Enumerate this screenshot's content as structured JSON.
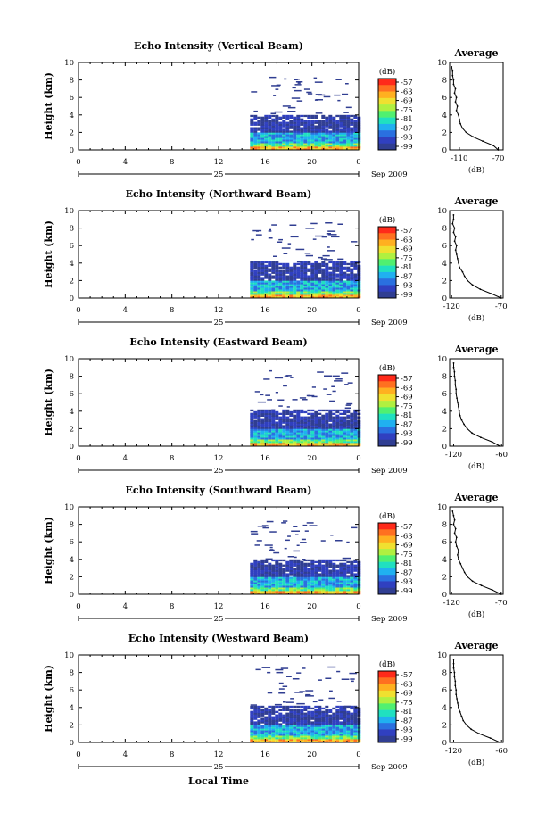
{
  "figure": {
    "bottom_label": "Local Time",
    "date_label": "Sep 2009",
    "day_label": "25",
    "colorbar": {
      "unit": "(dB)",
      "tick_labels": [
        "-57",
        "-63",
        "-69",
        "-75",
        "-81",
        "-87",
        "-93",
        "-99"
      ],
      "colors": [
        "#ff2a1a",
        "#ff7020",
        "#ffb020",
        "#f0e030",
        "#b0f040",
        "#50f070",
        "#20e0c0",
        "#20b0f0",
        "#2a70e0",
        "#3040c0",
        "#303e92"
      ]
    },
    "profile_title": "Average",
    "profile_xlabel": "(dB)"
  },
  "chart_data": [
    {
      "type": "heatmap",
      "title": "Echo Intensity (Vertical Beam)",
      "ylabel": "Height (km)",
      "x_ticks": [
        "0",
        "4",
        "8",
        "12",
        "16",
        "20",
        "0"
      ],
      "y_ticks": [
        "0",
        "2",
        "4",
        "6",
        "8",
        "10"
      ],
      "xlim": [
        0,
        24
      ],
      "ylim": [
        0,
        10
      ],
      "data_start_hour": 14.7,
      "echo_top_km": 4.0,
      "profile": {
        "x_ticks": [
          "-110",
          "-70"
        ],
        "xlim": [
          -120,
          -65
        ],
        "height_km": [
          0,
          0.5,
          1,
          1.5,
          2,
          2.5,
          3,
          3.5,
          4,
          4.5,
          5,
          5.5,
          6,
          6.5,
          7,
          7.5,
          8,
          8.5,
          9,
          9.5
        ],
        "value_db": [
          -70,
          -75,
          -86,
          -96,
          -103,
          -107,
          -109,
          -110,
          -111,
          -113,
          -112,
          -114,
          -113,
          -115,
          -114,
          -116,
          -116,
          -117,
          -117,
          -118
        ]
      }
    },
    {
      "type": "heatmap",
      "title": "Echo Intensity (Northward Beam)",
      "ylabel": "Height (km)",
      "x_ticks": [
        "0",
        "4",
        "8",
        "12",
        "16",
        "20",
        "0"
      ],
      "y_ticks": [
        "0",
        "2",
        "4",
        "6",
        "8",
        "10"
      ],
      "xlim": [
        0,
        24
      ],
      "ylim": [
        0,
        10
      ],
      "data_start_hour": 14.7,
      "echo_top_km": 4.2,
      "profile": {
        "x_ticks": [
          "-120",
          "-70"
        ],
        "xlim": [
          -122,
          -68
        ],
        "height_km": [
          0,
          0.5,
          1,
          1.5,
          2,
          2.5,
          3,
          3.5,
          4,
          4.5,
          5,
          5.5,
          6,
          6.5,
          7,
          7.5,
          8,
          8.5,
          9,
          9.5
        ],
        "value_db": [
          -70,
          -80,
          -91,
          -99,
          -104,
          -107,
          -109,
          -112,
          -113,
          -114,
          -115,
          -116,
          -115,
          -117,
          -116,
          -118,
          -117,
          -119,
          -118,
          -118
        ]
      }
    },
    {
      "type": "heatmap",
      "title": "Echo Intensity (Eastward Beam)",
      "ylabel": "Height (km)",
      "x_ticks": [
        "0",
        "4",
        "8",
        "12",
        "16",
        "20",
        "0"
      ],
      "y_ticks": [
        "0",
        "2",
        "4",
        "6",
        "8",
        "10"
      ],
      "xlim": [
        0,
        24
      ],
      "ylim": [
        0,
        10
      ],
      "data_start_hour": 14.7,
      "echo_top_km": 4.2,
      "profile": {
        "x_ticks": [
          "-120",
          "-60"
        ],
        "xlim": [
          -125,
          -58
        ],
        "height_km": [
          0,
          0.5,
          1,
          1.5,
          2,
          2.5,
          3,
          3.5,
          4,
          4.5,
          5,
          5.5,
          6,
          6.5,
          7,
          7.5,
          8,
          8.5,
          9,
          9.5
        ],
        "value_db": [
          -62,
          -72,
          -86,
          -97,
          -103,
          -107,
          -110,
          -112,
          -113,
          -114,
          -115,
          -116,
          -117,
          -117,
          -118,
          -118,
          -119,
          -119,
          -120,
          -120
        ]
      }
    },
    {
      "type": "heatmap",
      "title": "Echo Intensity (Southward Beam)",
      "ylabel": "Height (km)",
      "x_ticks": [
        "0",
        "4",
        "8",
        "12",
        "16",
        "20",
        "0"
      ],
      "y_ticks": [
        "0",
        "2",
        "4",
        "6",
        "8",
        "10"
      ],
      "xlim": [
        0,
        24
      ],
      "ylim": [
        0,
        10
      ],
      "data_start_hour": 14.7,
      "echo_top_km": 4.0,
      "profile": {
        "x_ticks": [
          "-120",
          "-70"
        ],
        "xlim": [
          -122,
          -68
        ],
        "height_km": [
          0,
          0.5,
          1,
          1.5,
          2,
          2.5,
          3,
          3.5,
          4,
          4.5,
          5,
          5.5,
          6,
          6.5,
          7,
          7.5,
          8,
          8.5,
          9,
          9.5
        ],
        "value_db": [
          -70,
          -79,
          -90,
          -99,
          -104,
          -107,
          -109,
          -111,
          -113,
          -114,
          -113,
          -115,
          -116,
          -115,
          -117,
          -116,
          -118,
          -117,
          -118,
          -119
        ]
      }
    },
    {
      "type": "heatmap",
      "title": "Echo Intensity (Westward Beam)",
      "ylabel": "Height (km)",
      "x_ticks": [
        "0",
        "4",
        "8",
        "12",
        "16",
        "20",
        "0"
      ],
      "y_ticks": [
        "0",
        "2",
        "4",
        "6",
        "8",
        "10"
      ],
      "xlim": [
        0,
        24
      ],
      "ylim": [
        0,
        10
      ],
      "data_start_hour": 14.7,
      "echo_top_km": 4.2,
      "profile": {
        "x_ticks": [
          "-120",
          "-60"
        ],
        "xlim": [
          -125,
          -58
        ],
        "height_km": [
          0,
          0.5,
          1,
          1.5,
          2,
          2.5,
          3,
          3.5,
          4,
          4.5,
          5,
          5.5,
          6,
          6.5,
          7,
          7.5,
          8,
          8.5,
          9,
          9.5
        ],
        "value_db": [
          -62,
          -74,
          -88,
          -98,
          -104,
          -108,
          -110,
          -112,
          -114,
          -115,
          -116,
          -117,
          -117,
          -118,
          -118,
          -119,
          -119,
          -120,
          -120,
          -120
        ]
      }
    }
  ]
}
